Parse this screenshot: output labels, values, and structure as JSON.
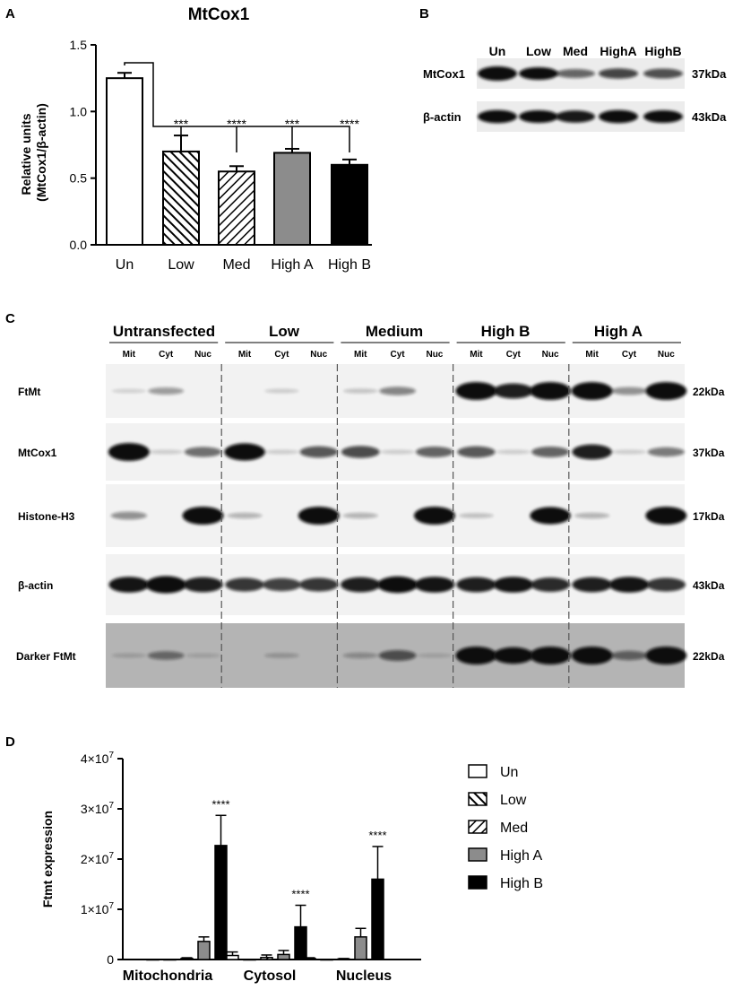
{
  "panel_labels": {
    "a": "A",
    "b": "B",
    "c": "C",
    "d": "D"
  },
  "hatch_types": [
    "none",
    "back",
    "forward",
    "none",
    "none"
  ],
  "colors": {
    "un": "#ffffff",
    "low": "#ffffff",
    "med": "#ffffff",
    "high_a": "#8c8c8c",
    "high_b": "#000000",
    "band": "#0a0a0a"
  },
  "chart_data": [
    {
      "type": "bar",
      "title": "MtCox1",
      "ylabel": "Relative units\n(MtCox1/β-actin)",
      "categories": [
        "Un",
        "Low",
        "Med",
        "High A",
        "High B"
      ],
      "values": [
        1.25,
        0.7,
        0.55,
        0.69,
        0.6
      ],
      "errors": [
        0.04,
        0.12,
        0.04,
        0.03,
        0.04
      ],
      "significance": [
        "",
        "***",
        "****",
        "***",
        "****"
      ],
      "ylim": [
        0,
        1.5
      ],
      "yticks": [
        "0.0",
        "0.5",
        "1.0",
        "1.5"
      ]
    },
    {
      "type": "bar",
      "ylabel": "Ftmt expression",
      "categories": [
        "Mitochondria",
        "Cytosol",
        "Nucleus"
      ],
      "series": [
        {
          "name": "Un",
          "values": [
            0.0,
            800000,
            200000
          ],
          "errors": [
            0,
            700000,
            150000
          ]
        },
        {
          "name": "Low",
          "values": [
            0,
            0,
            0
          ],
          "errors": [
            0,
            0,
            0
          ]
        },
        {
          "name": "Med",
          "values": [
            200000,
            400000,
            100000
          ],
          "errors": [
            150000,
            500000,
            100000
          ]
        },
        {
          "name": "High A",
          "values": [
            3600000,
            1000000,
            4500000
          ],
          "errors": [
            900000,
            800000,
            1700000
          ]
        },
        {
          "name": "High B",
          "values": [
            22700000,
            6500000,
            16000000
          ],
          "errors": [
            6000000,
            4300000,
            6500000
          ]
        }
      ],
      "significance": [
        "****",
        "****",
        "****"
      ],
      "ylim": [
        0,
        40000000
      ],
      "yticks": [
        {
          "base": "0",
          "exp": ""
        },
        {
          "base": "1×10",
          "exp": "7"
        },
        {
          "base": "2×10",
          "exp": "7"
        },
        {
          "base": "3×10",
          "exp": "7"
        },
        {
          "base": "4×10",
          "exp": "7"
        }
      ]
    }
  ],
  "blot_b": {
    "lanes": [
      "Un",
      "Low",
      "Med",
      "HighA",
      "HighB"
    ],
    "rows": [
      {
        "label": "MtCox1",
        "kda": "37kDa",
        "intensity": [
          1.0,
          0.8,
          0.4,
          0.55,
          0.5
        ]
      },
      {
        "label": "β-actin",
        "kda": "43kDa",
        "intensity": [
          0.85,
          0.8,
          0.75,
          0.85,
          0.8
        ]
      }
    ]
  },
  "blot_c": {
    "groups": [
      "Untransfected",
      "Low",
      "Medium",
      "High B",
      "High A"
    ],
    "subs": [
      "Mit",
      "Cyt",
      "Nuc"
    ],
    "rows": [
      {
        "label": "FtMt",
        "kda": "22kDa",
        "dark": false,
        "intensity": [
          0.03,
          0.25,
          0.02,
          0.0,
          0.05,
          0.0,
          0.08,
          0.35,
          0.02,
          1.0,
          0.8,
          1.0,
          1.0,
          0.3,
          1.0
        ]
      },
      {
        "label": "MtCox1",
        "kda": "37kDa",
        "dark": false,
        "intensity": [
          1.0,
          0.05,
          0.45,
          0.95,
          0.05,
          0.55,
          0.6,
          0.05,
          0.5,
          0.55,
          0.05,
          0.5,
          0.8,
          0.05,
          0.4
        ]
      },
      {
        "label": "Histone-H3",
        "kda": "17kDa",
        "dark": false,
        "intensity": [
          0.3,
          0.0,
          1.0,
          0.15,
          0.0,
          1.0,
          0.15,
          0.0,
          1.0,
          0.1,
          0.0,
          0.95,
          0.15,
          0.0,
          1.0
        ]
      },
      {
        "label": "β-actin",
        "kda": "43kDa",
        "dark": false,
        "intensity": [
          0.85,
          0.95,
          0.8,
          0.7,
          0.65,
          0.7,
          0.8,
          0.9,
          0.85,
          0.8,
          0.85,
          0.75,
          0.8,
          0.85,
          0.7
        ]
      },
      {
        "label": "Darker FtMt",
        "kda": "22kDa",
        "dark": true,
        "intensity": [
          0.05,
          0.35,
          0.03,
          0.0,
          0.1,
          0.0,
          0.15,
          0.5,
          0.03,
          1.0,
          0.9,
          1.0,
          1.0,
          0.4,
          1.0
        ]
      }
    ]
  }
}
